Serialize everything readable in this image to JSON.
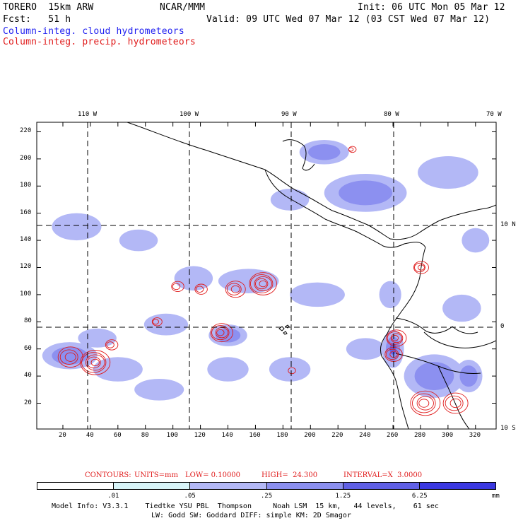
{
  "header": {
    "model": "TORERO  15km ARW",
    "center": "NCAR/MMM",
    "init": "Init: 06 UTC Mon 05 Mar 12",
    "fcst": "Fcst:   51 h",
    "valid": "Valid: 09 UTC Wed 07 Mar 12 (03 CST Wed 07 Mar 12)",
    "legend_cloud": "Column-integ. cloud hydrometeors",
    "legend_precip": "Column-integ. precip. hydrometeors"
  },
  "colors": {
    "cloud_text": "#1f1ff0",
    "precip_text": "#e01b1b",
    "contour": "#e01b1b",
    "coast": "#000000"
  },
  "contour_info": {
    "label": "CONTOURS:",
    "units": "UNITS=mm",
    "low": "LOW= 0.10000",
    "high": "HIGH=  24.300",
    "interval": "INTERVAL=X  3.0000"
  },
  "colorbar": {
    "colors": [
      "#ffffff",
      "#d8f4f8",
      "#b3b8f6",
      "#8c90f0",
      "#6060e6",
      "#3a38e0"
    ],
    "labels": [
      ".01",
      ".05",
      ".25",
      "1.25",
      "6.25"
    ],
    "units": "mm"
  },
  "footer": {
    "line1": "Model Info: V3.3.1    Tiedtke YSU PBL  Thompson     Noah LSM  15 km,   44 levels,    61 sec",
    "line2": "LW: Godd SW: Goddard DIFF: simple KM: 2D Smagor"
  },
  "chart_data": {
    "type": "heatmap",
    "x_grid_labels": [
      "20",
      "40",
      "60",
      "80",
      "100",
      "120",
      "140",
      "160",
      "180",
      "200",
      "220",
      "240",
      "260",
      "280",
      "300",
      "320"
    ],
    "y_grid_labels": [
      "20",
      "40",
      "60",
      "80",
      "100",
      "120",
      "140",
      "160",
      "180",
      "200",
      "220"
    ],
    "lon_labels": [
      "110 W",
      "100 W",
      "90 W",
      "80 W",
      "70 W"
    ],
    "lat_labels": [
      "10 N",
      "0",
      "10 S"
    ],
    "xlim": [
      1,
      335
    ],
    "ylim": [
      1,
      227
    ],
    "cloud_patches": [
      {
        "x": 25,
        "y": 55,
        "rx": 20,
        "ry": 10,
        "level": 2
      },
      {
        "x": 45,
        "y": 68,
        "rx": 14,
        "ry": 7,
        "level": 1
      },
      {
        "x": 60,
        "y": 45,
        "rx": 18,
        "ry": 9,
        "level": 1
      },
      {
        "x": 95,
        "y": 78,
        "rx": 16,
        "ry": 8,
        "level": 1
      },
      {
        "x": 115,
        "y": 112,
        "rx": 14,
        "ry": 9,
        "level": 1
      },
      {
        "x": 155,
        "y": 110,
        "rx": 22,
        "ry": 9,
        "level": 1
      },
      {
        "x": 140,
        "y": 70,
        "rx": 14,
        "ry": 8,
        "level": 2
      },
      {
        "x": 140,
        "y": 45,
        "rx": 15,
        "ry": 9,
        "level": 1
      },
      {
        "x": 185,
        "y": 45,
        "rx": 15,
        "ry": 9,
        "level": 1
      },
      {
        "x": 205,
        "y": 100,
        "rx": 20,
        "ry": 9,
        "level": 1
      },
      {
        "x": 240,
        "y": 175,
        "rx": 30,
        "ry": 14,
        "level": 2
      },
      {
        "x": 300,
        "y": 190,
        "rx": 22,
        "ry": 12,
        "level": 1
      },
      {
        "x": 210,
        "y": 205,
        "rx": 18,
        "ry": 9,
        "level": 2
      },
      {
        "x": 185,
        "y": 170,
        "rx": 14,
        "ry": 8,
        "level": 1
      },
      {
        "x": 30,
        "y": 150,
        "rx": 18,
        "ry": 10,
        "level": 1
      },
      {
        "x": 75,
        "y": 140,
        "rx": 14,
        "ry": 8,
        "level": 1
      },
      {
        "x": 290,
        "y": 40,
        "rx": 22,
        "ry": 16,
        "level": 2
      },
      {
        "x": 310,
        "y": 90,
        "rx": 14,
        "ry": 10,
        "level": 1
      },
      {
        "x": 258,
        "y": 100,
        "rx": 8,
        "ry": 10,
        "level": 1
      },
      {
        "x": 90,
        "y": 30,
        "rx": 18,
        "ry": 8,
        "level": 1
      },
      {
        "x": 240,
        "y": 60,
        "rx": 14,
        "ry": 8,
        "level": 1
      },
      {
        "x": 260,
        "y": 60,
        "rx": 8,
        "ry": 14,
        "level": 3
      },
      {
        "x": 315,
        "y": 40,
        "rx": 10,
        "ry": 12,
        "level": 2
      },
      {
        "x": 320,
        "y": 140,
        "rx": 10,
        "ry": 9,
        "level": 1
      }
    ],
    "precip_cells": [
      {
        "x": 43,
        "y": 50,
        "r": 12,
        "rings": 5
      },
      {
        "x": 25,
        "y": 54,
        "r": 10,
        "rings": 3
      },
      {
        "x": 55,
        "y": 63,
        "r": 5,
        "rings": 2
      },
      {
        "x": 88,
        "y": 80,
        "r": 4,
        "rings": 2
      },
      {
        "x": 135,
        "y": 72,
        "r": 9,
        "rings": 4
      },
      {
        "x": 165,
        "y": 108,
        "r": 11,
        "rings": 5
      },
      {
        "x": 145,
        "y": 104,
        "r": 8,
        "rings": 3
      },
      {
        "x": 103,
        "y": 106,
        "r": 5,
        "rings": 2
      },
      {
        "x": 120,
        "y": 104,
        "r": 5,
        "rings": 2
      },
      {
        "x": 280,
        "y": 120,
        "r": 6,
        "rings": 3
      },
      {
        "x": 262,
        "y": 68,
        "r": 8,
        "rings": 4
      },
      {
        "x": 260,
        "y": 56,
        "r": 7,
        "rings": 3
      },
      {
        "x": 283,
        "y": 20,
        "r": 12,
        "rings": 4
      },
      {
        "x": 305,
        "y": 20,
        "r": 10,
        "rings": 3
      },
      {
        "x": 230,
        "y": 207,
        "r": 3,
        "rings": 2
      },
      {
        "x": 186,
        "y": 44,
        "r": 3,
        "rings": 1
      }
    ]
  }
}
